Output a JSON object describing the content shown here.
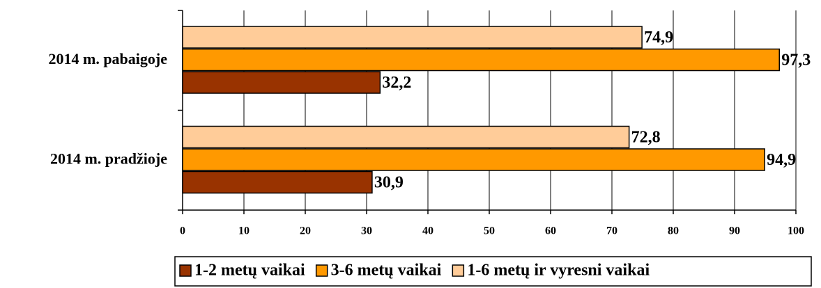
{
  "chart_data": {
    "type": "hbar",
    "categories": [
      "2014 m. pradžioje",
      "2014 m. pabaigoje"
    ],
    "series": [
      {
        "name": "1-2 metų vaikai",
        "color": "#993300",
        "values": [
          30.9,
          32.2
        ],
        "value_labels": [
          "30,9",
          "32,2"
        ]
      },
      {
        "name": "3-6 metų vaikai",
        "color": "#FF9900",
        "values": [
          94.9,
          97.3
        ],
        "value_labels": [
          "94,9",
          "97,3"
        ]
      },
      {
        "name": "1-6 metų ir vyresni vaikai",
        "color": "#FFCC99",
        "values": [
          72.8,
          74.9
        ],
        "value_labels": [
          "72,8",
          "74,9"
        ]
      }
    ],
    "xlim": [
      0,
      100
    ],
    "xticks": [
      0,
      10,
      20,
      30,
      40,
      50,
      60,
      70,
      80,
      90,
      100
    ],
    "grid": true,
    "legend": "bottom"
  }
}
